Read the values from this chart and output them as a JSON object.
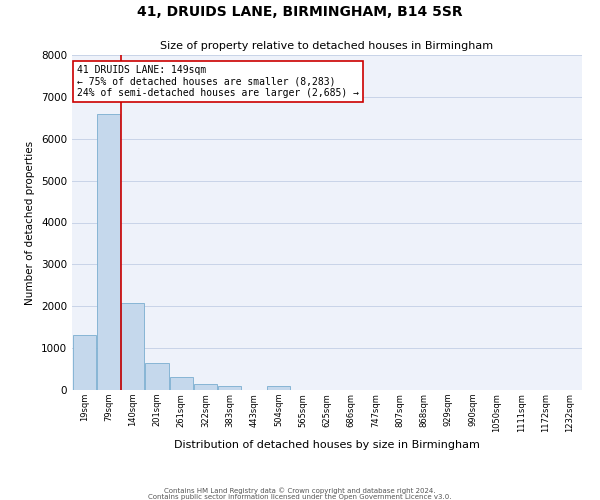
{
  "title": "41, DRUIDS LANE, BIRMINGHAM, B14 5SR",
  "subtitle": "Size of property relative to detached houses in Birmingham",
  "xlabel": "Distribution of detached houses by size in Birmingham",
  "ylabel": "Number of detached properties",
  "bin_labels": [
    "19sqm",
    "79sqm",
    "140sqm",
    "201sqm",
    "261sqm",
    "322sqm",
    "383sqm",
    "443sqm",
    "504sqm",
    "565sqm",
    "625sqm",
    "686sqm",
    "747sqm",
    "807sqm",
    "868sqm",
    "929sqm",
    "990sqm",
    "1050sqm",
    "1111sqm",
    "1172sqm",
    "1232sqm"
  ],
  "bar_heights": [
    1320,
    6600,
    2080,
    650,
    300,
    150,
    100,
    0,
    100,
    0,
    0,
    0,
    0,
    0,
    0,
    0,
    0,
    0,
    0,
    0,
    0
  ],
  "bar_color": "#c5d8ec",
  "bar_edge_color": "#7aaed0",
  "grid_color": "#c8d4e8",
  "background_color": "#eef2fa",
  "property_line_color": "#cc0000",
  "annotation_text": "41 DRUIDS LANE: 149sqm\n← 75% of detached houses are smaller (8,283)\n24% of semi-detached houses are larger (2,685) →",
  "annotation_box_color": "#ffffff",
  "annotation_box_edge": "#cc0000",
  "ylim": [
    0,
    8000
  ],
  "yticks": [
    0,
    1000,
    2000,
    3000,
    4000,
    5000,
    6000,
    7000,
    8000
  ],
  "footer_line1": "Contains HM Land Registry data © Crown copyright and database right 2024.",
  "footer_line2": "Contains public sector information licensed under the Open Government Licence v3.0."
}
